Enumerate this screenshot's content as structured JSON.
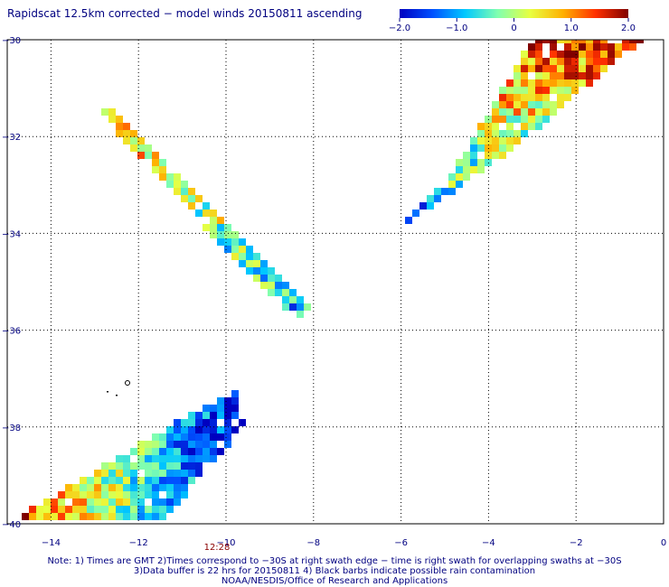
{
  "title": "Rapidscat 12.5km corrected − model winds 20150811 ascending",
  "colorbar": {
    "ticks": [
      "−2.0",
      "−1.0",
      "0",
      "1.0",
      "2.0"
    ],
    "tick_values": [
      -2.0,
      -1.0,
      0,
      1.0,
      2.0
    ],
    "range": [
      -2.0,
      2.0
    ],
    "colors": [
      "#0000c0",
      "#0050ff",
      "#00c8ff",
      "#80ffb0",
      "#e8ff40",
      "#ffb000",
      "#ff3000",
      "#800000"
    ]
  },
  "chart_data": {
    "type": "heatmap",
    "x_ticks": [
      "−14",
      "−12",
      "−10",
      "−8",
      "−6",
      "−4",
      "−2",
      "0"
    ],
    "x_tick_values": [
      -14,
      -12,
      -10,
      -8,
      -6,
      -4,
      -2,
      0
    ],
    "y_ticks": [
      "−30",
      "−32",
      "−34",
      "−36",
      "−38",
      "−40"
    ],
    "y_tick_values": [
      -30,
      -32,
      -34,
      -36,
      -38,
      -40
    ],
    "xlim": [
      -15,
      0
    ],
    "ylim": [
      -40,
      -30
    ],
    "grid": true,
    "time_marker": {
      "label": "12:28",
      "lon": -10
    },
    "swaths": [
      {
        "corners": [
          [
            -13.0,
            -31.4
          ],
          [
            -12.7,
            -31.4
          ],
          [
            -8.0,
            -35.6
          ],
          [
            -8.5,
            -35.8
          ]
        ],
        "pattern": "mixed-warm-north-cool-south"
      },
      {
        "corners": [
          [
            -6.5,
            -34.2
          ],
          [
            -3.5,
            -32.3
          ],
          [
            -0.5,
            -30.0
          ],
          [
            -3.0,
            -30.0
          ],
          [
            -5.0,
            -33.0
          ]
        ],
        "pattern": "mixed-cool-south-warm-north"
      },
      {
        "corners": [
          [
            -15.0,
            -40.0
          ],
          [
            -9.8,
            -37.2
          ],
          [
            -9.6,
            -38.0
          ],
          [
            -11.5,
            -40.0
          ]
        ],
        "pattern": "warm-west-cool-east"
      }
    ]
  },
  "notes": [
    "Note: 1) Times are GMT 2)Times correspond to −30S at right swath edge − time is right swath for overlapping swaths at −30S",
    "3)Data buffer is 22 hrs for 20150811 4) Black barbs indicate possible rain contamination",
    "NOAA/NESDIS/Office of Research and Applications"
  ]
}
